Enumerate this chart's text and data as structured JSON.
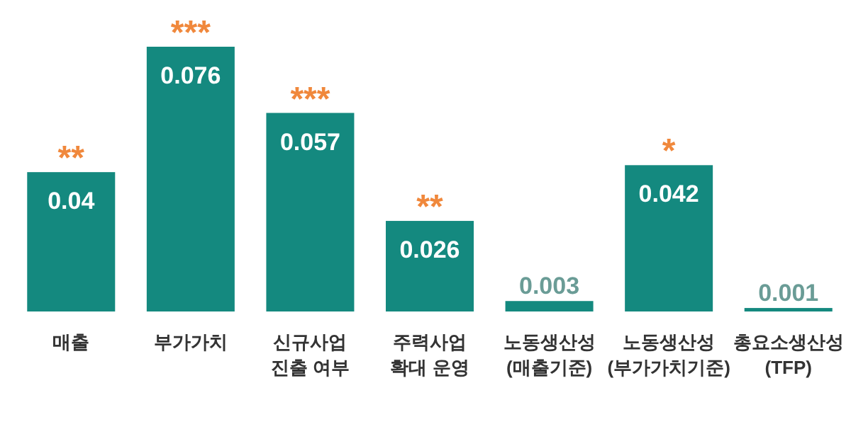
{
  "chart_data": {
    "type": "bar",
    "categories": [
      "매출",
      "부가가치",
      "신규사업\n진출 여부",
      "주력사업\n확대 운영",
      "노동생산성\n(매출기준)",
      "노동생산성\n(부가가치기준)",
      "총요소생산성\n(TFP)"
    ],
    "values": [
      0.04,
      0.076,
      0.057,
      0.026,
      0.003,
      0.042,
      0.001
    ],
    "color": "#14897f",
    "data_labels": true,
    "annotations": [
      {
        "text": "**",
        "x": "매출",
        "y": 0.04
      },
      {
        "text": "***",
        "x": "부가가치",
        "y": 0.076
      },
      {
        "text": "***",
        "x": "신규사업\n진출 여부",
        "y": 0.057
      },
      {
        "text": "**",
        "x": "주력사업\n확대 운영",
        "y": 0.026
      },
      {
        "text": "*",
        "x": "노동생산성\n(부가가치기준)",
        "y": 0.042
      }
    ]
  }
}
